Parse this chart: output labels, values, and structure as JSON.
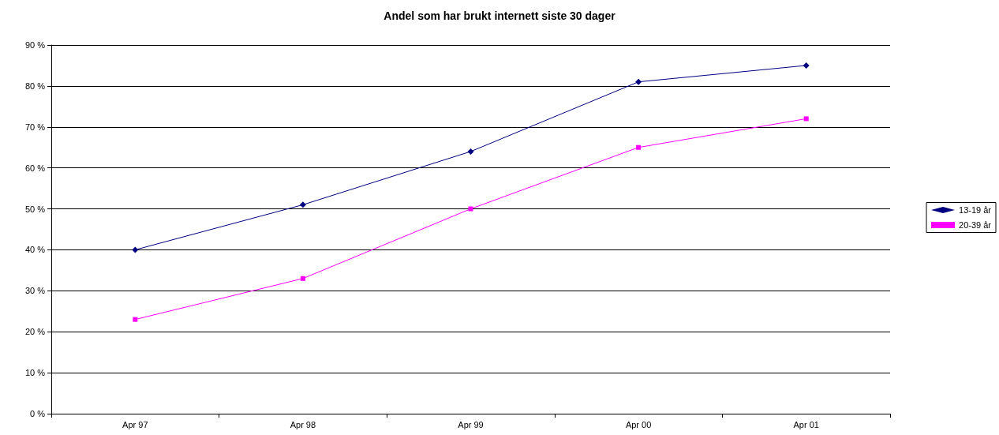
{
  "chart_data": {
    "type": "line",
    "title": "Andel som har brukt internett siste 30 dager",
    "categories": [
      "Apr 97",
      "Apr 98",
      "Apr 99",
      "Apr 00",
      "Apr 01"
    ],
    "series": [
      {
        "name": "13-19 år",
        "color": "#000080",
        "marker": "diamond",
        "values": [
          40,
          51,
          64,
          81,
          85
        ]
      },
      {
        "name": "20-39 år",
        "color": "#ff00ff",
        "marker": "square",
        "values": [
          23,
          33,
          50,
          65,
          72
        ]
      }
    ],
    "ylim": [
      0,
      90
    ],
    "yticks": [
      {
        "value": 0,
        "label": "0 %"
      },
      {
        "value": 10,
        "label": "10 %"
      },
      {
        "value": 20,
        "label": "20 %"
      },
      {
        "value": 30,
        "label": "30 %"
      },
      {
        "value": 40,
        "label": "40 %"
      },
      {
        "value": 50,
        "label": "50 %"
      },
      {
        "value": 60,
        "label": "60 %"
      },
      {
        "value": 70,
        "label": "70 %"
      },
      {
        "value": 80,
        "label": "80 %"
      },
      {
        "value": 90,
        "label": "90 %"
      }
    ],
    "grid": "y",
    "legend": "right",
    "line_style": "solid"
  }
}
